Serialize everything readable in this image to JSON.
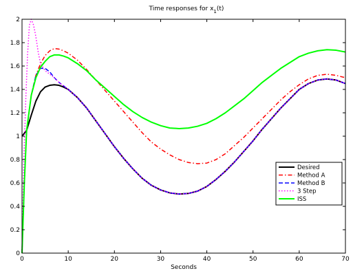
{
  "chart_data": {
    "type": "line",
    "title": "Time responses for x",
    "title_subscript": "1",
    "title_suffix": "(t)",
    "xlabel": "Seconds",
    "ylabel": "",
    "xlim": [
      0,
      70
    ],
    "ylim": [
      0,
      2
    ],
    "xticks": [
      0,
      10,
      20,
      30,
      40,
      50,
      60,
      70
    ],
    "yticks": [
      0,
      0.2,
      0.4,
      0.6,
      0.8,
      1,
      1.2,
      1.4,
      1.6,
      1.8,
      2
    ],
    "xtick_labels": [
      "0",
      "10",
      "20",
      "30",
      "40",
      "50",
      "60",
      "70"
    ],
    "ytick_labels": [
      "0",
      "0.2",
      "0.4",
      "0.6",
      "0.8",
      "1",
      "1.2",
      "1.4",
      "1.6",
      "1.8",
      "2"
    ],
    "grid": false,
    "legend_position": "right",
    "series": [
      {
        "name": "Desired",
        "color": "#000000",
        "dash": "solid",
        "width": 2,
        "points": [
          [
            0,
            1.0
          ],
          [
            1,
            1.05
          ],
          [
            2,
            1.18
          ],
          [
            3,
            1.3
          ],
          [
            4,
            1.38
          ],
          [
            5,
            1.42
          ],
          [
            6,
            1.435
          ],
          [
            7,
            1.44
          ],
          [
            8,
            1.435
          ],
          [
            9,
            1.42
          ],
          [
            10,
            1.4
          ],
          [
            12,
            1.33
          ],
          [
            14,
            1.24
          ],
          [
            16,
            1.13
          ],
          [
            18,
            1.02
          ],
          [
            20,
            0.91
          ],
          [
            22,
            0.81
          ],
          [
            24,
            0.72
          ],
          [
            26,
            0.64
          ],
          [
            28,
            0.58
          ],
          [
            30,
            0.54
          ],
          [
            32,
            0.515
          ],
          [
            34,
            0.505
          ],
          [
            36,
            0.51
          ],
          [
            38,
            0.53
          ],
          [
            40,
            0.57
          ],
          [
            42,
            0.63
          ],
          [
            44,
            0.7
          ],
          [
            46,
            0.78
          ],
          [
            48,
            0.87
          ],
          [
            50,
            0.96
          ],
          [
            52,
            1.06
          ],
          [
            54,
            1.15
          ],
          [
            56,
            1.24
          ],
          [
            58,
            1.32
          ],
          [
            60,
            1.4
          ],
          [
            62,
            1.45
          ],
          [
            64,
            1.48
          ],
          [
            66,
            1.49
          ],
          [
            68,
            1.48
          ],
          [
            70,
            1.45
          ]
        ]
      },
      {
        "name": "Method A",
        "color": "#ff0000",
        "dash": "dashdot",
        "width": 1.5,
        "points": [
          [
            0,
            0
          ],
          [
            0.5,
            0.6
          ],
          [
            1,
            1.05
          ],
          [
            2,
            1.35
          ],
          [
            3,
            1.52
          ],
          [
            4,
            1.62
          ],
          [
            5,
            1.69
          ],
          [
            6,
            1.73
          ],
          [
            7,
            1.75
          ],
          [
            8,
            1.745
          ],
          [
            9,
            1.73
          ],
          [
            10,
            1.71
          ],
          [
            12,
            1.65
          ],
          [
            14,
            1.57
          ],
          [
            16,
            1.48
          ],
          [
            18,
            1.39
          ],
          [
            20,
            1.3
          ],
          [
            22,
            1.21
          ],
          [
            24,
            1.12
          ],
          [
            26,
            1.03
          ],
          [
            28,
            0.95
          ],
          [
            30,
            0.89
          ],
          [
            32,
            0.84
          ],
          [
            34,
            0.8
          ],
          [
            36,
            0.775
          ],
          [
            38,
            0.765
          ],
          [
            40,
            0.77
          ],
          [
            42,
            0.8
          ],
          [
            44,
            0.85
          ],
          [
            46,
            0.92
          ],
          [
            48,
            0.99
          ],
          [
            50,
            1.07
          ],
          [
            52,
            1.15
          ],
          [
            54,
            1.23
          ],
          [
            56,
            1.31
          ],
          [
            58,
            1.38
          ],
          [
            60,
            1.44
          ],
          [
            62,
            1.49
          ],
          [
            64,
            1.52
          ],
          [
            66,
            1.53
          ],
          [
            68,
            1.52
          ],
          [
            70,
            1.5
          ]
        ]
      },
      {
        "name": "Method B",
        "color": "#0000ff",
        "dash": "dash",
        "width": 1.5,
        "points": [
          [
            0,
            0
          ],
          [
            0.5,
            0.6
          ],
          [
            1,
            1.05
          ],
          [
            2,
            1.35
          ],
          [
            3,
            1.52
          ],
          [
            4,
            1.58
          ],
          [
            5,
            1.58
          ],
          [
            6,
            1.55
          ],
          [
            7,
            1.5
          ],
          [
            8,
            1.46
          ],
          [
            9,
            1.43
          ],
          [
            10,
            1.4
          ],
          [
            12,
            1.33
          ],
          [
            14,
            1.24
          ],
          [
            16,
            1.13
          ],
          [
            18,
            1.02
          ],
          [
            20,
            0.91
          ],
          [
            22,
            0.81
          ],
          [
            24,
            0.72
          ],
          [
            26,
            0.64
          ],
          [
            28,
            0.58
          ],
          [
            30,
            0.54
          ],
          [
            32,
            0.515
          ],
          [
            34,
            0.505
          ],
          [
            36,
            0.51
          ],
          [
            38,
            0.53
          ],
          [
            40,
            0.57
          ],
          [
            42,
            0.63
          ],
          [
            44,
            0.7
          ],
          [
            46,
            0.78
          ],
          [
            48,
            0.87
          ],
          [
            50,
            0.96
          ],
          [
            52,
            1.06
          ],
          [
            54,
            1.15
          ],
          [
            56,
            1.24
          ],
          [
            58,
            1.32
          ],
          [
            60,
            1.4
          ],
          [
            62,
            1.45
          ],
          [
            64,
            1.48
          ],
          [
            66,
            1.49
          ],
          [
            68,
            1.48
          ],
          [
            70,
            1.45
          ]
        ]
      },
      {
        "name": "3 Step",
        "color": "#ff00ff",
        "dash": "dot",
        "width": 1.5,
        "points": [
          [
            0,
            0
          ],
          [
            0.4,
            0.8
          ],
          [
            0.8,
            1.3
          ],
          [
            1.2,
            1.7
          ],
          [
            1.6,
            1.95
          ],
          [
            2,
            2.0
          ],
          [
            2.5,
            1.95
          ],
          [
            3,
            1.85
          ],
          [
            3.5,
            1.72
          ],
          [
            4,
            1.62
          ],
          [
            5,
            1.56
          ],
          [
            6,
            1.53
          ],
          [
            7,
            1.5
          ],
          [
            8,
            1.46
          ],
          [
            9,
            1.43
          ],
          [
            10,
            1.4
          ],
          [
            12,
            1.33
          ],
          [
            14,
            1.24
          ],
          [
            16,
            1.13
          ],
          [
            18,
            1.02
          ],
          [
            20,
            0.91
          ],
          [
            22,
            0.81
          ],
          [
            24,
            0.72
          ],
          [
            26,
            0.64
          ],
          [
            28,
            0.58
          ],
          [
            30,
            0.54
          ],
          [
            32,
            0.515
          ],
          [
            34,
            0.505
          ],
          [
            36,
            0.51
          ],
          [
            38,
            0.53
          ],
          [
            40,
            0.57
          ],
          [
            42,
            0.63
          ],
          [
            44,
            0.7
          ],
          [
            46,
            0.78
          ],
          [
            48,
            0.87
          ],
          [
            50,
            0.96
          ],
          [
            52,
            1.06
          ],
          [
            54,
            1.15
          ],
          [
            56,
            1.24
          ],
          [
            58,
            1.32
          ],
          [
            60,
            1.4
          ],
          [
            62,
            1.45
          ],
          [
            64,
            1.48
          ],
          [
            66,
            1.49
          ],
          [
            68,
            1.48
          ],
          [
            70,
            1.45
          ]
        ]
      },
      {
        "name": "ISS",
        "color": "#00ff00",
        "dash": "solid",
        "width": 2,
        "points": [
          [
            0,
            0
          ],
          [
            0.5,
            0.6
          ],
          [
            1,
            1.05
          ],
          [
            2,
            1.35
          ],
          [
            3,
            1.5
          ],
          [
            4,
            1.59
          ],
          [
            5,
            1.64
          ],
          [
            6,
            1.68
          ],
          [
            7,
            1.695
          ],
          [
            8,
            1.695
          ],
          [
            9,
            1.685
          ],
          [
            10,
            1.67
          ],
          [
            12,
            1.62
          ],
          [
            14,
            1.56
          ],
          [
            16,
            1.48
          ],
          [
            18,
            1.41
          ],
          [
            20,
            1.34
          ],
          [
            22,
            1.27
          ],
          [
            24,
            1.21
          ],
          [
            26,
            1.16
          ],
          [
            28,
            1.12
          ],
          [
            30,
            1.09
          ],
          [
            32,
            1.07
          ],
          [
            34,
            1.065
          ],
          [
            36,
            1.07
          ],
          [
            38,
            1.085
          ],
          [
            40,
            1.11
          ],
          [
            42,
            1.15
          ],
          [
            44,
            1.2
          ],
          [
            46,
            1.26
          ],
          [
            48,
            1.32
          ],
          [
            50,
            1.39
          ],
          [
            52,
            1.46
          ],
          [
            54,
            1.52
          ],
          [
            56,
            1.58
          ],
          [
            58,
            1.63
          ],
          [
            60,
            1.68
          ],
          [
            62,
            1.71
          ],
          [
            64,
            1.73
          ],
          [
            66,
            1.74
          ],
          [
            68,
            1.735
          ],
          [
            70,
            1.72
          ]
        ]
      }
    ]
  }
}
